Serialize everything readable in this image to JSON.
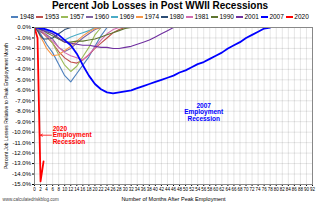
{
  "chart_data": {
    "type": "line",
    "title": "Percent Job Losses in Post WWII Recessions",
    "x_label": "Number of Months After Peak Employment",
    "y_label": "Percent Job Losses Relative to Peak Employment Month",
    "source": "www.calculatedriskblog.com",
    "legend": "top",
    "grid": true,
    "xlim": [
      0,
      92
    ],
    "xticks": [
      0,
      2,
      4,
      6,
      8,
      10,
      12,
      14,
      16,
      18,
      20,
      22,
      24,
      26,
      28,
      30,
      32,
      34,
      36,
      38,
      40,
      42,
      44,
      46,
      48,
      50,
      52,
      54,
      56,
      58,
      60,
      62,
      64,
      66,
      68,
      70,
      72,
      74,
      76,
      78,
      80,
      82,
      84,
      86,
      88,
      90,
      92
    ],
    "ylim": [
      -15,
      0
    ],
    "yticks": [
      {
        "value": 0,
        "label": "0.0%"
      },
      {
        "value": -1,
        "label": "-1.0%"
      },
      {
        "value": -2,
        "label": "-2.0%"
      },
      {
        "value": -3,
        "label": "-3.0%"
      },
      {
        "value": -4,
        "label": "-4.0%"
      },
      {
        "value": -5,
        "label": "-5.0%"
      },
      {
        "value": -6,
        "label": "-6.0%"
      },
      {
        "value": -7,
        "label": "-7.0%"
      },
      {
        "value": -8,
        "label": "-8.0%"
      },
      {
        "value": -9,
        "label": "-9.0%"
      },
      {
        "value": -10,
        "label": "-10.0%"
      },
      {
        "value": -11,
        "label": "-11.0%"
      },
      {
        "value": -12,
        "label": "-12.0%"
      },
      {
        "value": -13,
        "label": "-13.0%"
      },
      {
        "value": -14,
        "label": "-14.0%"
      },
      {
        "value": -15,
        "label": "-15.0%"
      }
    ],
    "x": [
      0,
      1,
      2,
      3,
      4,
      6,
      8,
      10,
      12,
      14,
      16,
      18,
      20,
      22,
      24,
      26,
      28,
      30,
      32,
      34,
      36,
      38,
      40,
      42,
      44,
      46,
      48,
      50,
      52,
      54,
      56,
      58,
      60,
      62,
      64,
      66,
      68,
      70,
      72,
      74,
      76,
      78
    ],
    "series": [
      {
        "name": "1948",
        "color": "#4f81bd",
        "values": [
          0,
          -0.3,
          -0.6,
          -1.1,
          -1.6,
          -2.4,
          -3.5,
          -4.6,
          -5.2,
          -4.4,
          -3.6,
          -2.8,
          -1.8,
          -0.8,
          0,
          null,
          null,
          null,
          null,
          null,
          null,
          null,
          null,
          null,
          null,
          null,
          null,
          null,
          null,
          null,
          null,
          null,
          null,
          null,
          null,
          null,
          null,
          null,
          null,
          null,
          null,
          null
        ]
      },
      {
        "name": "1953",
        "color": "#c0504d",
        "values": [
          0,
          -0.2,
          -0.4,
          -0.6,
          -0.9,
          -1.5,
          -2.3,
          -2.9,
          -3.3,
          -3.4,
          -3.1,
          -2.6,
          -2.0,
          -1.5,
          -1.0,
          -0.5,
          -0.2,
          0,
          null,
          null,
          null,
          null,
          null,
          null,
          null,
          null,
          null,
          null,
          null,
          null,
          null,
          null,
          null,
          null,
          null,
          null,
          null,
          null,
          null,
          null,
          null,
          null
        ]
      },
      {
        "name": "1957",
        "color": "#9bbb59",
        "values": [
          0,
          -0.1,
          -0.3,
          -0.5,
          -0.8,
          -1.5,
          -2.6,
          -3.6,
          -4.2,
          -3.7,
          -2.8,
          -1.9,
          -0.7,
          0,
          null,
          null,
          null,
          null,
          null,
          null,
          null,
          null,
          null,
          null,
          null,
          null,
          null,
          null,
          null,
          null,
          null,
          null,
          null,
          null,
          null,
          null,
          null,
          null,
          null,
          null,
          null,
          null
        ]
      },
      {
        "name": "1960",
        "color": "#8064a2",
        "values": [
          0,
          -0.2,
          -0.4,
          -0.5,
          -0.7,
          -1.1,
          -1.9,
          -2.3,
          -2.0,
          -1.5,
          -1.0,
          -0.6,
          -0.2,
          0,
          null,
          null,
          null,
          null,
          null,
          null,
          null,
          null,
          null,
          null,
          null,
          null,
          null,
          null,
          null,
          null,
          null,
          null,
          null,
          null,
          null,
          null,
          null,
          null,
          null,
          null,
          null,
          null
        ]
      },
      {
        "name": "1969",
        "color": "#4bacc6",
        "values": [
          0,
          -0.1,
          -0.2,
          -0.2,
          -0.3,
          -0.6,
          -1.1,
          -1.2,
          -0.9,
          -0.7,
          -0.5,
          -0.3,
          0,
          null,
          null,
          null,
          null,
          null,
          null,
          null,
          null,
          null,
          null,
          null,
          null,
          null,
          null,
          null,
          null,
          null,
          null,
          null,
          null,
          null,
          null,
          null,
          null,
          null,
          null,
          null,
          null,
          null
        ]
      },
      {
        "name": "1974",
        "color": "#f79646",
        "values": [
          0,
          -0.3,
          -0.9,
          -1.4,
          -2.0,
          -2.7,
          -2.6,
          -2.2,
          -1.8,
          -1.3,
          -0.8,
          -0.4,
          -0.1,
          0,
          null,
          null,
          null,
          null,
          null,
          null,
          null,
          null,
          null,
          null,
          null,
          null,
          null,
          null,
          null,
          null,
          null,
          null,
          null,
          null,
          null,
          null,
          null,
          null,
          null,
          null,
          null,
          null
        ]
      },
      {
        "name": "1980",
        "color": "#2c4d75",
        "values": [
          0,
          -0.3,
          -0.8,
          -1.1,
          -1.1,
          -1.0,
          -0.6,
          -0.2,
          0,
          null,
          null,
          null,
          null,
          null,
          null,
          null,
          null,
          null,
          null,
          null,
          null,
          null,
          null,
          null,
          null,
          null,
          null,
          null,
          null,
          null,
          null,
          null,
          null,
          null,
          null,
          null,
          null,
          null,
          null,
          null,
          null,
          null
        ]
      },
      {
        "name": "1981",
        "color": "#d36cb0",
        "values": [
          0,
          -0.1,
          -0.2,
          -0.5,
          -0.8,
          -1.3,
          -1.9,
          -2.4,
          -2.7,
          -2.9,
          -3.1,
          -2.6,
          -1.9,
          -1.2,
          -0.6,
          -0.2,
          0,
          null,
          null,
          null,
          null,
          null,
          null,
          null,
          null,
          null,
          null,
          null,
          null,
          null,
          null,
          null,
          null,
          null,
          null,
          null,
          null,
          null,
          null,
          null,
          null,
          null
        ]
      },
      {
        "name": "1990",
        "color": "#5f7530",
        "values": [
          0,
          -0.1,
          -0.2,
          -0.3,
          -0.5,
          -0.8,
          -1.1,
          -1.4,
          -1.4,
          -1.3,
          -1.3,
          -1.2,
          -1.1,
          -0.9,
          -0.7,
          -0.5,
          -0.3,
          -0.1,
          0,
          null,
          null,
          null,
          null,
          null,
          null,
          null,
          null,
          null,
          null,
          null,
          null,
          null,
          null,
          null,
          null,
          null,
          null,
          null,
          null,
          null,
          null,
          null
        ]
      },
      {
        "name": "2001",
        "color": "#7030a0",
        "values": [
          0,
          -0.1,
          -0.2,
          -0.3,
          -0.4,
          -0.6,
          -1.0,
          -1.4,
          -1.5,
          -1.6,
          -1.7,
          -1.7,
          -1.8,
          -1.9,
          -1.9,
          -2.0,
          -2.0,
          -1.9,
          -1.8,
          -1.6,
          -1.4,
          -1.2,
          -0.9,
          -0.6,
          -0.3,
          0,
          null,
          null,
          null,
          null,
          null,
          null,
          null,
          null,
          null,
          null,
          null,
          null,
          null,
          null,
          null,
          null
        ]
      },
      {
        "name": "2007",
        "color": "#0000ff",
        "values": [
          0,
          0,
          -0.1,
          -0.1,
          -0.2,
          -0.4,
          -0.7,
          -1.2,
          -1.7,
          -2.5,
          -3.6,
          -4.6,
          -5.4,
          -5.9,
          -6.2,
          -6.3,
          -6.2,
          -6.1,
          -6.0,
          -5.8,
          -5.6,
          -5.4,
          -5.2,
          -5.0,
          -4.8,
          -4.6,
          -4.3,
          -4.1,
          -3.8,
          -3.5,
          -3.3,
          -3.0,
          -2.7,
          -2.4,
          -2.0,
          -1.7,
          -1.4,
          -1.0,
          -0.7,
          -0.4,
          -0.1,
          0
        ]
      },
      {
        "name": "2020",
        "color": "#ff0000",
        "values": [
          0,
          -1.0,
          -14.7,
          -12.8,
          null,
          null,
          null,
          null,
          null,
          null,
          null,
          null,
          null,
          null,
          null,
          null,
          null,
          null,
          null,
          null,
          null,
          null,
          null,
          null,
          null,
          null,
          null,
          null,
          null,
          null,
          null,
          null,
          null,
          null,
          null,
          null,
          null,
          null,
          null,
          null,
          null,
          null
        ]
      }
    ],
    "annotations": [
      {
        "text": "2007 Employment Recession",
        "series": "2007",
        "color": "#0000ff"
      },
      {
        "text": "2020 Employment Recession",
        "series": "2020",
        "color": "#ff0000"
      }
    ]
  }
}
